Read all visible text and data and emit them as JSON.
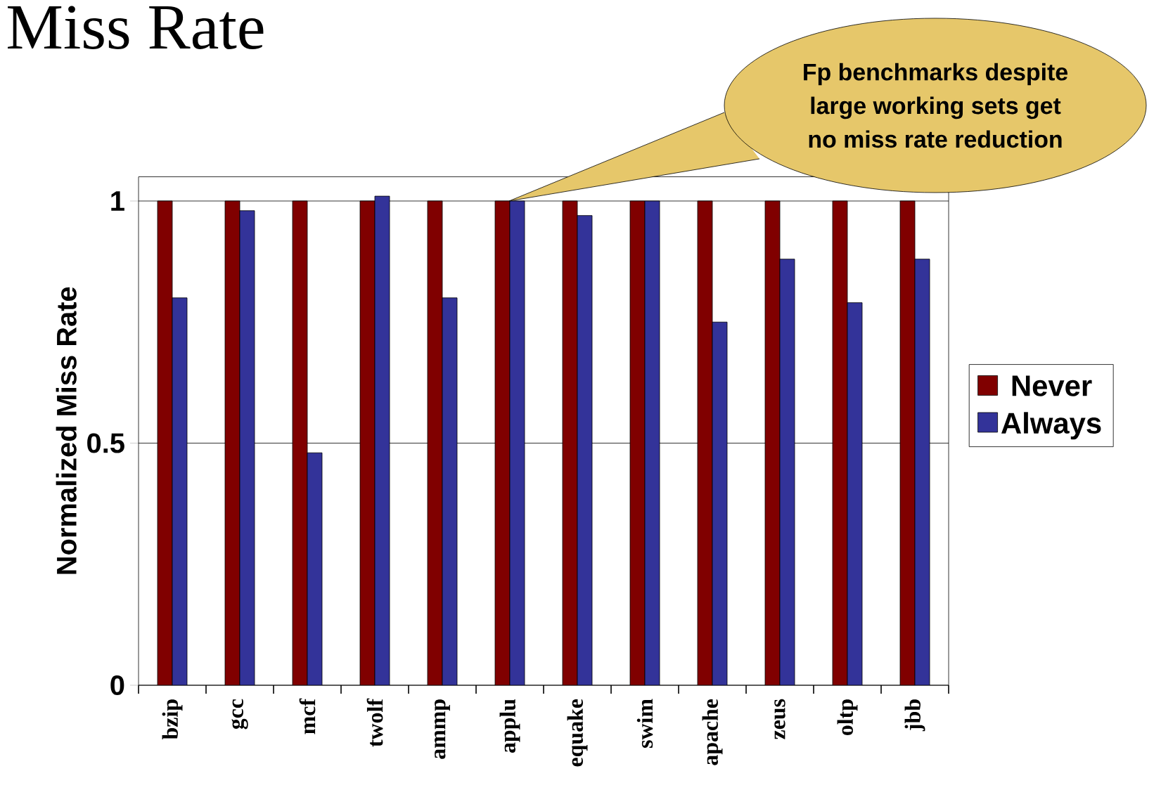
{
  "chart_data": {
    "type": "bar",
    "title": "Miss Rate",
    "ylabel": "Normalized Miss Rate",
    "categories": [
      "bzip",
      "gcc",
      "mcf",
      "twolf",
      "ammp",
      "applu",
      "equake",
      "swim",
      "apache",
      "zeus",
      "oltp",
      "jbb"
    ],
    "series": [
      {
        "name": "Never",
        "color": "#800000",
        "values": [
          1,
          1,
          1,
          1,
          1,
          1,
          1,
          1,
          1,
          1,
          1,
          1
        ]
      },
      {
        "name": "Always",
        "color": "#333399",
        "values": [
          0.8,
          0.98,
          0.48,
          1.01,
          0.8,
          1.0,
          0.97,
          1.0,
          0.75,
          0.88,
          0.79,
          0.88
        ]
      }
    ],
    "ylim": [
      0,
      1.05
    ],
    "yticks": [
      0,
      0.5,
      1
    ],
    "grid": "y",
    "legend": "right",
    "annotations": [
      "Fp benchmarks despite large working sets get no miss rate reduction"
    ]
  }
}
